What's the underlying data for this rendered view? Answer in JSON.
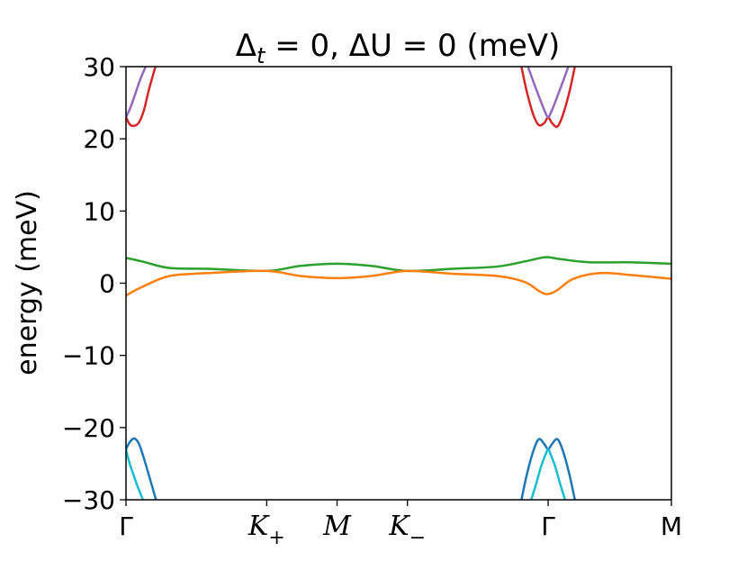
{
  "chart_data": {
    "type": "line",
    "title": "Δt = 0, ΔU = 0 (meV)",
    "title_parts": {
      "pre": "Δ",
      "sub": "t",
      "post": " = 0, ΔU = 0 (meV)"
    },
    "ylabel": "energy (meV)",
    "xlabel": "",
    "ylim": [
      -30,
      30
    ],
    "xlim": [
      0,
      1
    ],
    "yticks": [
      -30,
      -20,
      -10,
      0,
      10,
      20,
      30
    ],
    "ytick_labels": [
      "−30",
      "−20",
      "−10",
      "0",
      "10",
      "20",
      "30"
    ],
    "xticks": [
      {
        "x": 0.0,
        "label": "Γ",
        "italic": false
      },
      {
        "x": 0.258,
        "label": "K",
        "sub": "+",
        "italic": true
      },
      {
        "x": 0.387,
        "label": "M",
        "italic": true
      },
      {
        "x": 0.516,
        "label": "K",
        "sub": "−",
        "italic": true
      },
      {
        "x": 0.774,
        "label": "Γ",
        "italic": false
      },
      {
        "x": 1.0,
        "label": "M",
        "italic": false
      }
    ],
    "grid": false,
    "series": [
      {
        "color": "#2ca02c",
        "x": [
          0.0,
          0.03,
          0.08,
          0.15,
          0.258,
          0.32,
          0.387,
          0.45,
          0.516,
          0.6,
          0.68,
          0.73,
          0.76,
          0.774,
          0.8,
          0.85,
          0.92,
          1.0
        ],
        "values": [
          3.5,
          3.0,
          2.1,
          2.0,
          1.7,
          2.4,
          2.7,
          2.4,
          1.7,
          2.0,
          2.3,
          3.0,
          3.5,
          3.6,
          3.3,
          2.9,
          2.9,
          2.7
        ]
      },
      {
        "color": "#ff7f0e",
        "x": [
          0.0,
          0.03,
          0.08,
          0.15,
          0.258,
          0.32,
          0.387,
          0.45,
          0.516,
          0.6,
          0.68,
          0.73,
          0.76,
          0.774,
          0.79,
          0.82,
          0.87,
          0.93,
          1.0
        ],
        "values": [
          -1.7,
          -0.5,
          1.0,
          1.4,
          1.7,
          1.0,
          0.7,
          1.0,
          1.7,
          1.3,
          1.0,
          0.2,
          -1.2,
          -1.5,
          -1.0,
          0.6,
          1.4,
          1.1,
          0.6
        ]
      },
      {
        "color": "#d62728",
        "x": [
          0.0,
          0.007,
          0.015,
          0.024,
          0.033,
          0.042,
          0.054
        ],
        "values": [
          23.0,
          22.0,
          21.8,
          22.3,
          24.0,
          26.8,
          30.0
        ]
      },
      {
        "color": "#9467bd",
        "x": [
          0.0,
          0.008,
          0.016,
          0.025,
          0.036
        ],
        "values": [
          23.0,
          24.3,
          26.0,
          28.0,
          30.0
        ]
      },
      {
        "color": "#1f77b4",
        "x": [
          0.0,
          0.007,
          0.015,
          0.024,
          0.035,
          0.055
        ],
        "values": [
          -23.0,
          -22.0,
          -21.5,
          -22.3,
          -24.8,
          -30.0
        ]
      },
      {
        "color": "#17becf",
        "x": [
          0.0,
          0.006,
          0.014,
          0.022,
          0.031
        ],
        "values": [
          -23.0,
          -24.8,
          -26.6,
          -28.3,
          -30.0
        ]
      },
      {
        "color": "#d62728",
        "x": [
          0.725,
          0.735,
          0.747,
          0.757,
          0.767,
          0.774,
          0.781,
          0.791,
          0.801,
          0.813,
          0.823
        ],
        "values": [
          30.0,
          26.5,
          23.3,
          21.9,
          22.2,
          23.0,
          22.2,
          21.7,
          23.3,
          26.5,
          30.0
        ]
      },
      {
        "color": "#9467bd",
        "x": [
          0.737,
          0.748,
          0.759,
          0.768,
          0.774,
          0.78,
          0.789,
          0.8,
          0.811
        ],
        "values": [
          30.0,
          27.7,
          25.5,
          23.8,
          23.0,
          23.8,
          25.5,
          27.7,
          30.0
        ]
      },
      {
        "color": "#1f77b4",
        "x": [
          0.725,
          0.735,
          0.747,
          0.757,
          0.767,
          0.774,
          0.781,
          0.791,
          0.801,
          0.813,
          0.823
        ],
        "values": [
          -30.0,
          -26.5,
          -23.2,
          -21.6,
          -22.3,
          -23.0,
          -22.3,
          -21.6,
          -23.2,
          -26.5,
          -30.0
        ]
      },
      {
        "color": "#17becf",
        "x": [
          0.743,
          0.752,
          0.761,
          0.769,
          0.774,
          0.779,
          0.787,
          0.796,
          0.805
        ],
        "values": [
          -30.0,
          -27.8,
          -25.4,
          -23.8,
          -23.0,
          -23.8,
          -25.4,
          -27.8,
          -30.0
        ]
      }
    ]
  }
}
